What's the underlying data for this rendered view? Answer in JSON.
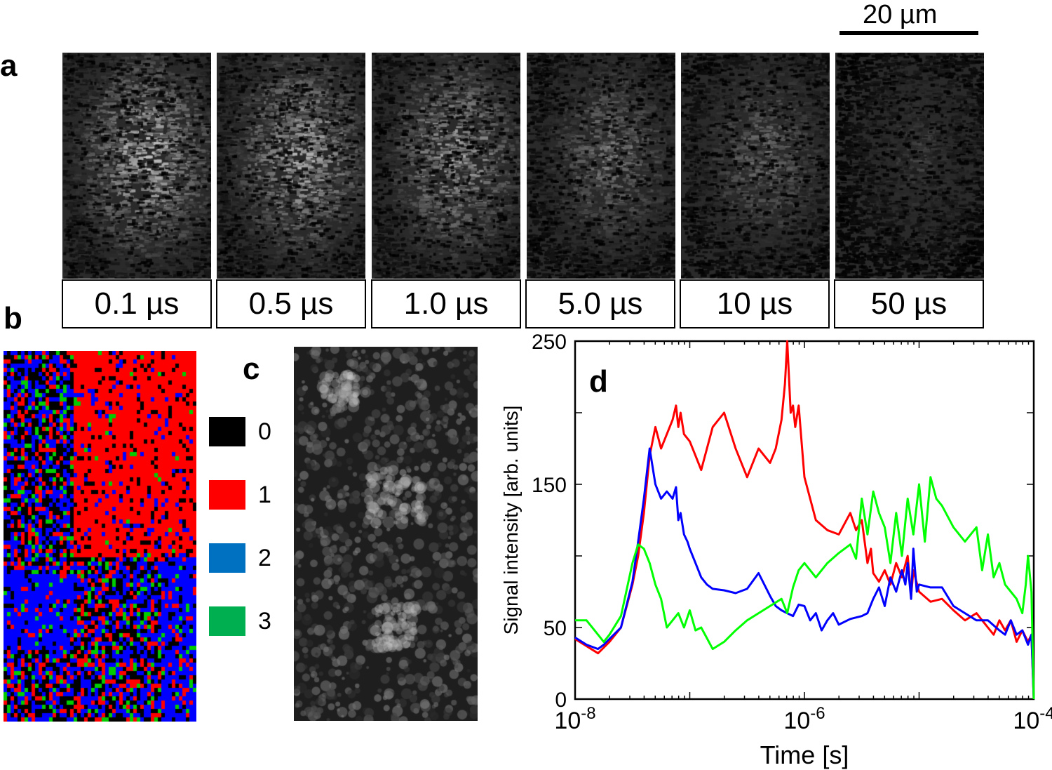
{
  "panel_labels": {
    "a": "a",
    "b": "b",
    "c": "c",
    "d": "d"
  },
  "panel_a": {
    "scale_bar_label": "20 µm",
    "frames": [
      {
        "label": "0.1 µs",
        "brightness": 0.85
      },
      {
        "label": "0.5 µs",
        "brightness": 0.8
      },
      {
        "label": "1.0 µs",
        "brightness": 0.75
      },
      {
        "label": "5.0 µs",
        "brightness": 0.55
      },
      {
        "label": "10 µs",
        "brightness": 0.5
      },
      {
        "label": "50 µs",
        "brightness": 0.3
      }
    ]
  },
  "panel_b": {
    "legend": [
      {
        "label": "0",
        "color": "#000000"
      },
      {
        "label": "1",
        "color": "#ff0000"
      },
      {
        "label": "2",
        "color": "#0070c0"
      },
      {
        "label": "3",
        "color": "#00b050"
      }
    ],
    "map_colors": [
      "#000000",
      "#ff0000",
      "#0000ff",
      "#00cc00"
    ]
  },
  "chart_data": {
    "type": "line",
    "xscale": "log",
    "xlim": [
      1e-08,
      0.0001
    ],
    "ylim": [
      0,
      250
    ],
    "xlabel": "Time [s]",
    "ylabel": "Signal intensity [arb. units]",
    "x_ticks": [
      {
        "value": 1e-08,
        "base": "10",
        "exp": "-8"
      },
      {
        "value": 1e-06,
        "base": "10",
        "exp": "-6"
      },
      {
        "value": 0.0001,
        "base": "10",
        "exp": "-4"
      }
    ],
    "y_ticks": [
      {
        "value": 0,
        "label": "0"
      },
      {
        "value": 50,
        "label": "50"
      },
      {
        "value": 150,
        "label": "150"
      },
      {
        "value": 250,
        "label": "250"
      }
    ],
    "series": [
      {
        "name": "1",
        "color": "#ff0000",
        "x": [
          -8,
          -7.9,
          -7.8,
          -7.75,
          -7.7,
          -7.6,
          -7.5,
          -7.45,
          -7.4,
          -7.35,
          -7.3,
          -7.25,
          -7.2,
          -7.15,
          -7.12,
          -7.1,
          -7.08,
          -7.05,
          -7.02,
          -7.0,
          -6.95,
          -6.9,
          -6.8,
          -6.7,
          -6.6,
          -6.5,
          -6.4,
          -6.3,
          -6.25,
          -6.2,
          -6.17,
          -6.15,
          -6.12,
          -6.1,
          -6.08,
          -6.05,
          -6.02,
          -6.0,
          -5.9,
          -5.8,
          -5.7,
          -5.6,
          -5.55,
          -5.5,
          -5.45,
          -5.42,
          -5.4,
          -5.35,
          -5.3,
          -5.25,
          -5.2,
          -5.15,
          -5.1,
          -5.07,
          -5.05,
          -5.0,
          -4.9,
          -4.8,
          -4.7,
          -4.6,
          -4.5,
          -4.4,
          -4.35,
          -4.3,
          -4.25,
          -4.2,
          -4.15,
          -4.1,
          -4.05,
          -4.02,
          -4.0
        ],
        "y": [
          42,
          37,
          32,
          36,
          40,
          50,
          80,
          100,
          130,
          170,
          190,
          175,
          185,
          195,
          205,
          190,
          200,
          185,
          182,
          180,
          170,
          160,
          190,
          200,
          175,
          155,
          175,
          165,
          175,
          195,
          220,
          250,
          200,
          205,
          190,
          205,
          175,
          155,
          125,
          118,
          115,
          130,
          118,
          125,
          95,
          105,
          88,
          82,
          90,
          80,
          95,
          85,
          100,
          72,
          90,
          75,
          68,
          70,
          62,
          55,
          60,
          50,
          45,
          55,
          48,
          55,
          40,
          48,
          40,
          45,
          0
        ]
      },
      {
        "name": "2",
        "color": "#0000ff",
        "x": [
          -8,
          -7.9,
          -7.8,
          -7.75,
          -7.7,
          -7.6,
          -7.5,
          -7.45,
          -7.4,
          -7.35,
          -7.3,
          -7.25,
          -7.2,
          -7.15,
          -7.12,
          -7.1,
          -7.08,
          -7.05,
          -7.02,
          -7.0,
          -6.95,
          -6.9,
          -6.85,
          -6.8,
          -6.7,
          -6.6,
          -6.5,
          -6.4,
          -6.3,
          -6.25,
          -6.2,
          -6.15,
          -6.1,
          -6.05,
          -6.0,
          -5.95,
          -5.9,
          -5.85,
          -5.8,
          -5.75,
          -5.7,
          -5.6,
          -5.5,
          -5.45,
          -5.4,
          -5.35,
          -5.3,
          -5.25,
          -5.2,
          -5.15,
          -5.12,
          -5.1,
          -5.07,
          -5.05,
          -5.02,
          -5.0,
          -4.9,
          -4.8,
          -4.7,
          -4.6,
          -4.5,
          -4.4,
          -4.3,
          -4.25,
          -4.2,
          -4.15,
          -4.1,
          -4.05,
          -4.02,
          -4.0
        ],
        "y": [
          43,
          38,
          35,
          38,
          42,
          50,
          82,
          110,
          140,
          175,
          150,
          140,
          145,
          140,
          148,
          125,
          130,
          115,
          110,
          105,
          95,
          85,
          80,
          77,
          76,
          74,
          77,
          88,
          72,
          65,
          62,
          60,
          58,
          66,
          65,
          55,
          60,
          48,
          55,
          60,
          52,
          56,
          58,
          60,
          70,
          78,
          65,
          85,
          75,
          90,
          80,
          95,
          70,
          105,
          75,
          80,
          78,
          78,
          65,
          60,
          55,
          55,
          48,
          45,
          55,
          45,
          48,
          38,
          45,
          0
        ]
      },
      {
        "name": "3",
        "color": "#00ff00",
        "x": [
          -8,
          -7.9,
          -7.8,
          -7.75,
          -7.7,
          -7.6,
          -7.5,
          -7.45,
          -7.4,
          -7.35,
          -7.3,
          -7.25,
          -7.2,
          -7.15,
          -7.1,
          -7.05,
          -7.0,
          -6.95,
          -6.9,
          -6.8,
          -6.7,
          -6.6,
          -6.5,
          -6.4,
          -6.3,
          -6.2,
          -6.15,
          -6.1,
          -6.05,
          -6.0,
          -5.9,
          -5.8,
          -5.7,
          -5.6,
          -5.55,
          -5.5,
          -5.45,
          -5.4,
          -5.35,
          -5.3,
          -5.25,
          -5.2,
          -5.15,
          -5.1,
          -5.05,
          -5.0,
          -4.95,
          -4.9,
          -4.85,
          -4.8,
          -4.7,
          -4.6,
          -4.5,
          -4.45,
          -4.4,
          -4.35,
          -4.3,
          -4.25,
          -4.2,
          -4.15,
          -4.1,
          -4.07,
          -4.05,
          -4.02,
          -4.0
        ],
        "y": [
          55,
          55,
          45,
          40,
          45,
          58,
          95,
          108,
          105,
          95,
          80,
          70,
          50,
          55,
          60,
          50,
          62,
          48,
          50,
          35,
          40,
          48,
          55,
          60,
          65,
          70,
          60,
          78,
          90,
          95,
          85,
          95,
          102,
          108,
          98,
          140,
          115,
          145,
          130,
          120,
          95,
          130,
          100,
          140,
          115,
          150,
          110,
          155,
          140,
          135,
          120,
          110,
          120,
          90,
          115,
          85,
          95,
          80,
          75,
          70,
          60,
          80,
          100,
          75,
          0
        ]
      }
    ]
  }
}
